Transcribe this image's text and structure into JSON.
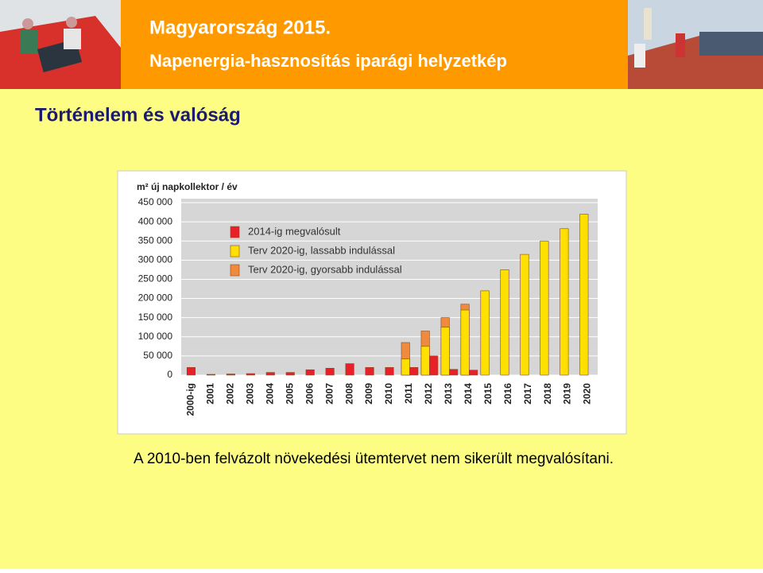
{
  "title": "Magyarország 2015.",
  "subtitle": "Napenergia-hasznosítás iparági helyzetkép",
  "heading": "Történelem és valóság",
  "caption": "A 2010-ben felvázolt növekedési ütemtervet nem sikerült megvalósítani.",
  "chart_data": {
    "type": "bar",
    "y_label": "m² új napkollektor / év",
    "categories": [
      "2000-ig",
      "2001",
      "2002",
      "2003",
      "2004",
      "2005",
      "2006",
      "2007",
      "2008",
      "2009",
      "2010",
      "2011",
      "2012",
      "2013",
      "2014",
      "2015",
      "2016",
      "2017",
      "2018",
      "2019",
      "2020"
    ],
    "series": [
      {
        "name": "2014-ig megvalósult",
        "color": "#e8202a",
        "values": [
          20000,
          2000,
          3000,
          4000,
          7000,
          7000,
          14000,
          18000,
          30000,
          20000,
          20000,
          20000,
          50000,
          15000,
          13000,
          null,
          null,
          null,
          null,
          null,
          null
        ]
      },
      {
        "name": "Terv 2020-ig, lassabb indulással",
        "color": "#ffe000",
        "values": [
          null,
          null,
          null,
          null,
          null,
          null,
          null,
          null,
          null,
          null,
          null,
          42000,
          75000,
          125000,
          170000,
          220000,
          275000,
          315000,
          350000,
          382000,
          420000
        ]
      },
      {
        "name": "Terv 2020-ig, gyorsabb indulással",
        "color": "#f08a3c",
        "values": [
          null,
          null,
          null,
          null,
          null,
          null,
          null,
          null,
          null,
          null,
          null,
          85000,
          115000,
          150000,
          185000,
          null,
          null,
          null,
          null,
          null,
          null
        ]
      }
    ],
    "ylim": [
      0,
      450000
    ],
    "yticks": [
      0,
      {
        "value": 50000,
        "label": "50 000"
      },
      {
        "value": 100000,
        "label": "100 000"
      },
      {
        "value": 150000,
        "label": "150 000"
      },
      {
        "value": 200000,
        "label": "200 000"
      },
      {
        "value": 250000,
        "label": "250 000"
      },
      {
        "value": 300000,
        "label": "300 000"
      },
      {
        "value": 350000,
        "label": "350 000"
      },
      {
        "value": 400000,
        "label": "400 000"
      },
      {
        "value": 450000,
        "label": "450 000"
      }
    ],
    "grid": true
  }
}
